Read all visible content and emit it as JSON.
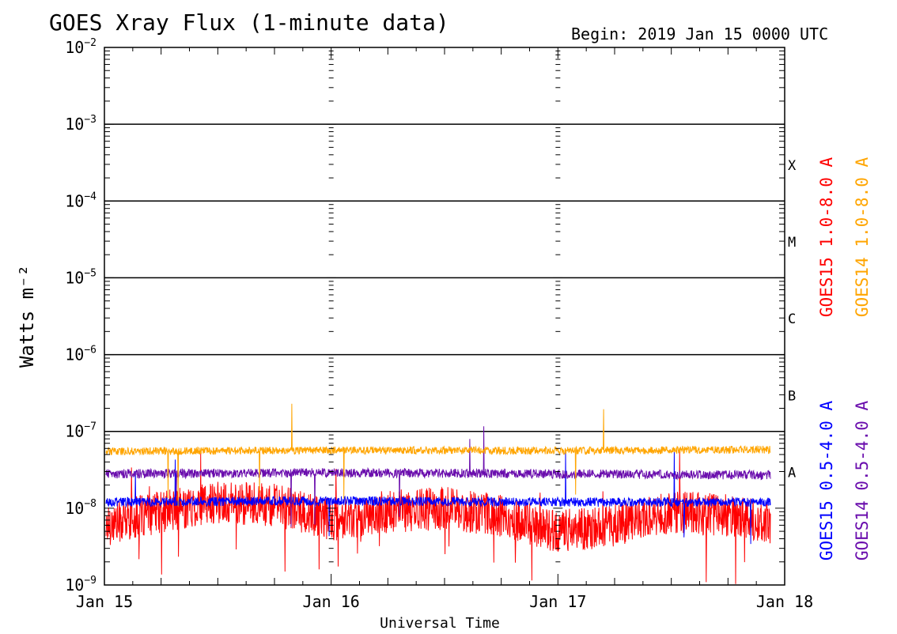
{
  "title": "GOES Xray Flux (1-minute data)",
  "begin_label": "Begin:  2019 Jan 15 0000 UTC",
  "chart_data": {
    "type": "line",
    "title": "GOES Xray Flux (1-minute data)",
    "xlabel": "Universal Time",
    "ylabel": "Watts m⁻²",
    "yscale": "log",
    "ylim": [
      1e-09,
      0.01
    ],
    "xlim": [
      "2019-01-15 00:00",
      "2019-01-18 00:00"
    ],
    "x_ticks": [
      "Jan 15",
      "Jan 16",
      "Jan 17",
      "Jan 18"
    ],
    "y_ticks": [
      {
        "base": "10",
        "exp": "-9"
      },
      {
        "base": "10",
        "exp": "-8"
      },
      {
        "base": "10",
        "exp": "-7"
      },
      {
        "base": "10",
        "exp": "-6"
      },
      {
        "base": "10",
        "exp": "-5"
      },
      {
        "base": "10",
        "exp": "-4"
      },
      {
        "base": "10",
        "exp": "-3"
      },
      {
        "base": "10",
        "exp": "-2"
      }
    ],
    "flare_classes": [
      {
        "label": "A",
        "level": 3e-08
      },
      {
        "label": "B",
        "level": 3e-07
      },
      {
        "label": "C",
        "level": 3e-06
      },
      {
        "label": "M",
        "level": 3e-05
      },
      {
        "label": "X",
        "level": 0.0003
      }
    ],
    "grid": "horizontal lines at 1e-7 through 1e-3",
    "legend_position": "right, vertical",
    "series": [
      {
        "name": "GOES15 1.0-8.0 A",
        "color": "#ff0000",
        "x": [
          "2019-01-15 00:00",
          "2019-01-15 06:00",
          "2019-01-15 12:00",
          "2019-01-15 18:00",
          "2019-01-16 00:00",
          "2019-01-16 06:00",
          "2019-01-16 12:00",
          "2019-01-16 18:00",
          "2019-01-17 00:00",
          "2019-01-17 06:00",
          "2019-01-17 12:00",
          "2019-01-17 18:00",
          "2019-01-18 00:00"
        ],
        "values": [
          6e-09,
          9e-09,
          1.2e-08,
          1.1e-08,
          7e-09,
          9e-09,
          1e-08,
          8e-09,
          5e-09,
          6e-09,
          9e-09,
          8e-09,
          6e-09
        ]
      },
      {
        "name": "GOES14 1.0-8.0 A",
        "color": "#ffa500",
        "x": [
          "2019-01-15 00:00",
          "2019-01-16 00:00",
          "2019-01-17 00:00",
          "2019-01-18 00:00"
        ],
        "values": [
          5.5e-08,
          5.7e-08,
          5.6e-08,
          5.8e-08
        ]
      },
      {
        "name": "GOES15 0.5-4.0 A",
        "color": "#0000ff",
        "x": [
          "2019-01-15 00:00",
          "2019-01-16 00:00",
          "2019-01-17 00:00",
          "2019-01-18 00:00"
        ],
        "values": [
          1.2e-08,
          1.25e-08,
          1.2e-08,
          1.2e-08
        ]
      },
      {
        "name": "GOES14 0.5-4.0 A",
        "color": "#6a0dad",
        "x": [
          "2019-01-15 00:00",
          "2019-01-16 00:00",
          "2019-01-17 00:00",
          "2019-01-18 00:00"
        ],
        "values": [
          2.8e-08,
          2.9e-08,
          2.8e-08,
          2.7e-08
        ]
      }
    ]
  }
}
